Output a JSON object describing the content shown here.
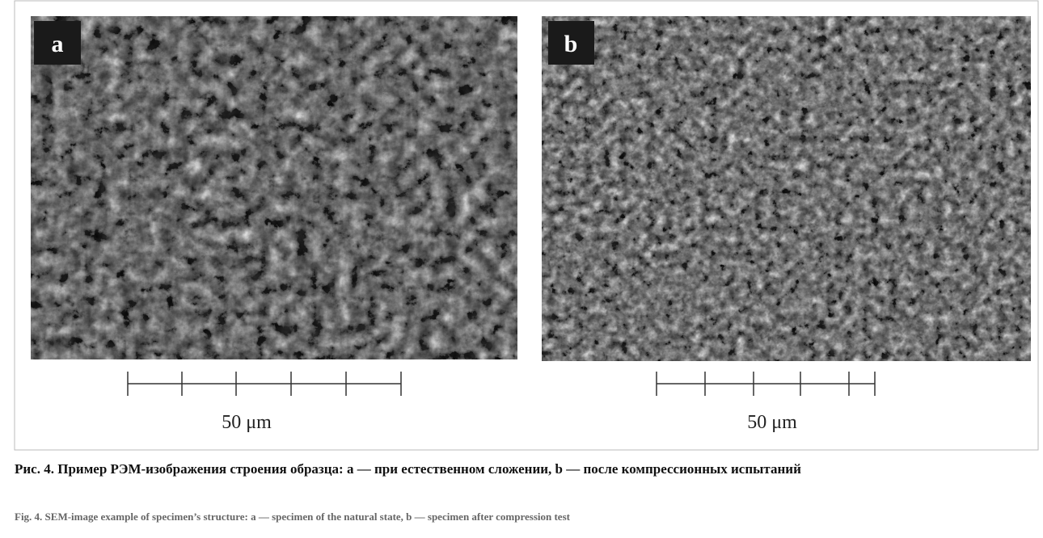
{
  "figure": {
    "panels": [
      {
        "label": "a",
        "scale_label": "50 μm"
      },
      {
        "label": "b",
        "scale_label": "50 μm"
      }
    ],
    "caption_ru": "Рис. 4. Пример РЭМ-изображения строения образца: a — при естественном сложении, b — после компрессионных испытаний",
    "caption_en": "Fig. 4. SEM-image example of specimen’s structure: a — specimen of the natural state, b — specimen after compression test"
  }
}
